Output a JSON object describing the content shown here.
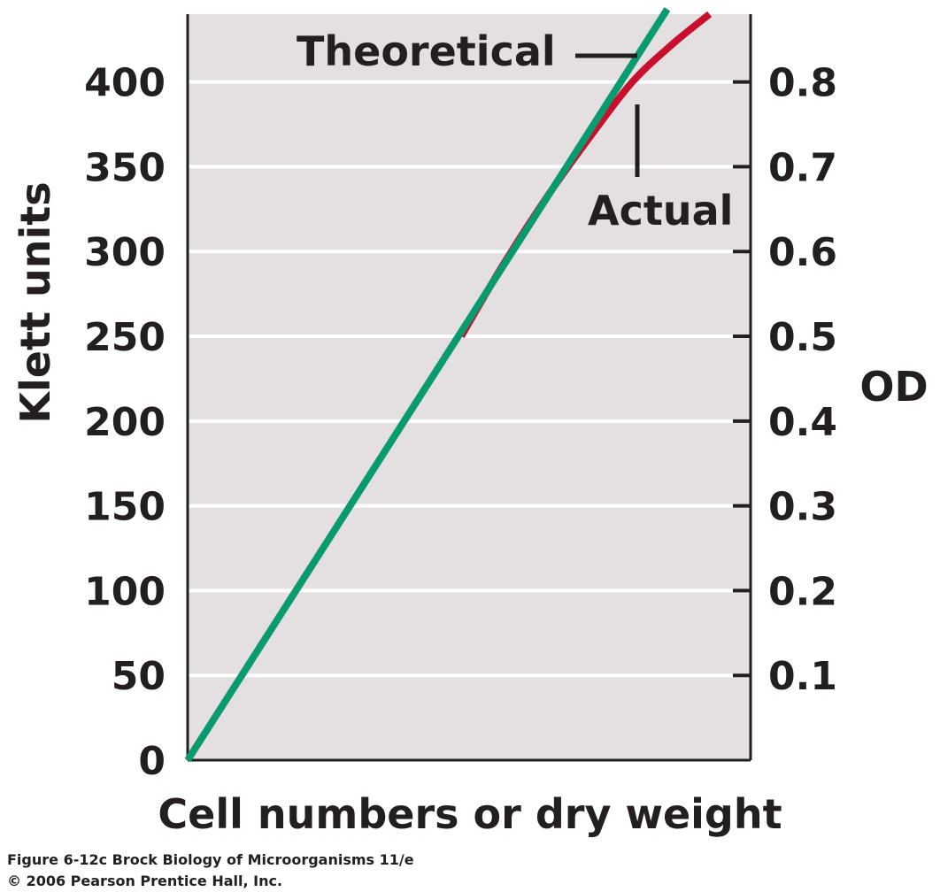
{
  "chart_data": {
    "type": "line",
    "xlabel": "Cell numbers or dry weight",
    "ylabel": "Klett units",
    "y2label": "OD",
    "ylim": [
      0,
      440
    ],
    "y2lim": [
      0,
      0.88
    ],
    "xlim": [
      0,
      100
    ],
    "yticks": [
      0,
      50,
      100,
      150,
      200,
      250,
      300,
      350,
      400
    ],
    "ytick_labels": [
      "0",
      "50",
      "100",
      "150",
      "200",
      "250",
      "300",
      "350",
      "400"
    ],
    "y2ticks": [
      0.1,
      0.2,
      0.3,
      0.4,
      0.5,
      0.6,
      0.7,
      0.8
    ],
    "y2tick_labels": [
      "0.1",
      "0.2",
      "0.3",
      "0.4",
      "0.5",
      "0.6",
      "0.7",
      "0.8"
    ],
    "grid": true,
    "series": [
      {
        "name": "Theoretical",
        "color": "#0a9a6f",
        "x": [
          0,
          85.2
        ],
        "y": [
          0,
          443
        ]
      },
      {
        "name": "Actual",
        "color": "#c8102e",
        "x": [
          48.6,
          56,
          64,
          72,
          79,
          86,
          92.7
        ],
        "y": [
          250,
          292,
          333,
          370,
          400,
          422,
          440
        ]
      }
    ]
  },
  "caption": {
    "line1": "Figure 6-12c  Brock Biology of Microorganisms 11/e",
    "line2": "© 2006 Pearson Prentice Hall, Inc."
  }
}
